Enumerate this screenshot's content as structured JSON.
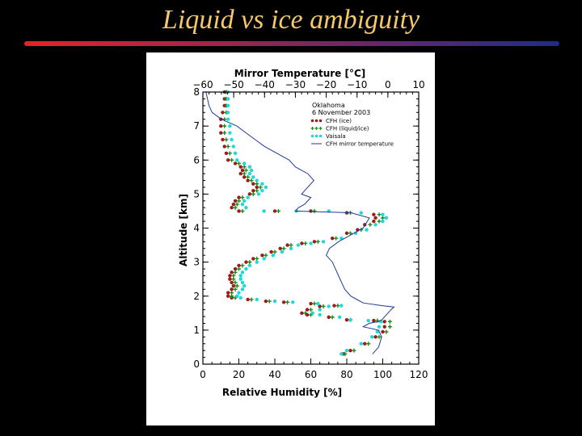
{
  "slide": {
    "title": "Liquid vs ice ambiguity",
    "title_color": "#f5c86a",
    "rule_colors": [
      "#e8212a",
      "#1f2c8a"
    ]
  },
  "chart_data": {
    "type": "scatter",
    "title": "",
    "xlabel": "Relative Humidity [%]",
    "ylabel": "Altitude [km]",
    "x2label": "Mirror Temperature [°C]",
    "xlim": [
      0,
      120
    ],
    "ylim": [
      0,
      8
    ],
    "x2lim": [
      -60,
      10
    ],
    "x_ticks": [
      "0",
      "20",
      "40",
      "60",
      "80",
      "100",
      "120"
    ],
    "y_ticks": [
      "0",
      "1",
      "2",
      "3",
      "4",
      "5",
      "6",
      "7",
      "8"
    ],
    "x2_ticks": [
      "−60",
      "−50",
      "−40",
      "−30",
      "−20",
      "−10",
      "0",
      "10"
    ],
    "annotation": [
      "Oklahoma",
      "6 November 2003"
    ],
    "legend_position": "top-right",
    "grid": false,
    "series": [
      {
        "name": "CFH (ice)",
        "marker": "dots",
        "color": "#a01a1a",
        "points": [
          [
            78,
            0.3
          ],
          [
            82,
            0.4
          ],
          [
            90,
            0.6
          ],
          [
            96,
            0.8
          ],
          [
            100,
            0.95
          ],
          [
            101,
            1.1
          ],
          [
            101,
            1.25
          ],
          [
            95,
            1.28
          ],
          [
            80,
            1.3
          ],
          [
            70,
            1.38
          ],
          [
            58,
            1.45
          ],
          [
            55,
            1.5
          ],
          [
            58,
            1.6
          ],
          [
            65,
            1.7
          ],
          [
            73,
            1.72
          ],
          [
            60,
            1.78
          ],
          [
            45,
            1.82
          ],
          [
            35,
            1.85
          ],
          [
            25,
            1.9
          ],
          [
            16,
            1.95
          ],
          [
            14,
            2.0
          ],
          [
            14,
            2.1
          ],
          [
            16,
            2.2
          ],
          [
            17,
            2.3
          ],
          [
            16,
            2.4
          ],
          [
            15,
            2.5
          ],
          [
            15,
            2.6
          ],
          [
            16,
            2.7
          ],
          [
            18,
            2.8
          ],
          [
            20,
            2.9
          ],
          [
            24,
            3.0
          ],
          [
            28,
            3.1
          ],
          [
            33,
            3.2
          ],
          [
            38,
            3.3
          ],
          [
            43,
            3.4
          ],
          [
            47,
            3.5
          ],
          [
            55,
            3.55
          ],
          [
            62,
            3.6
          ],
          [
            72,
            3.7
          ],
          [
            80,
            3.85
          ],
          [
            86,
            3.95
          ],
          [
            90,
            4.1
          ],
          [
            95,
            4.2
          ],
          [
            96,
            4.3
          ],
          [
            95,
            4.4
          ],
          [
            80,
            4.45
          ],
          [
            60,
            4.5
          ],
          [
            40,
            4.5
          ],
          [
            20,
            4.5
          ],
          [
            16,
            4.6
          ],
          [
            17,
            4.7
          ],
          [
            18,
            4.8
          ],
          [
            20,
            4.9
          ],
          [
            26,
            5.0
          ],
          [
            28,
            5.1
          ],
          [
            30,
            5.2
          ],
          [
            28,
            5.3
          ],
          [
            25,
            5.4
          ],
          [
            23,
            5.5
          ],
          [
            21,
            5.6
          ],
          [
            22,
            5.7
          ],
          [
            21,
            5.8
          ],
          [
            18,
            5.9
          ],
          [
            14,
            6.0
          ],
          [
            13,
            6.2
          ],
          [
            12,
            6.4
          ],
          [
            11,
            6.6
          ],
          [
            10,
            6.8
          ],
          [
            10,
            7.0
          ],
          [
            10,
            7.2
          ],
          [
            11,
            7.4
          ],
          [
            12,
            7.6
          ],
          [
            12,
            7.8
          ],
          [
            12,
            8.0
          ]
        ]
      },
      {
        "name": "CFH (liquid/ice)",
        "marker": "plus",
        "color": "#1a8a1a",
        "points": [
          [
            79,
            0.3
          ],
          [
            84,
            0.4
          ],
          [
            92,
            0.6
          ],
          [
            98,
            0.8
          ],
          [
            102,
            0.95
          ],
          [
            104,
            1.1
          ],
          [
            104,
            1.25
          ],
          [
            97,
            1.28
          ],
          [
            82,
            1.3
          ],
          [
            72,
            1.38
          ],
          [
            60,
            1.45
          ],
          [
            57,
            1.5
          ],
          [
            60,
            1.6
          ],
          [
            67,
            1.7
          ],
          [
            75,
            1.72
          ],
          [
            62,
            1.78
          ],
          [
            47,
            1.82
          ],
          [
            37,
            1.85
          ],
          [
            27,
            1.9
          ],
          [
            18,
            1.95
          ],
          [
            16,
            2.0
          ],
          [
            16,
            2.1
          ],
          [
            18,
            2.2
          ],
          [
            19,
            2.3
          ],
          [
            18,
            2.4
          ],
          [
            17,
            2.5
          ],
          [
            17,
            2.6
          ],
          [
            18,
            2.7
          ],
          [
            20,
            2.8
          ],
          [
            22,
            2.9
          ],
          [
            26,
            3.0
          ],
          [
            30,
            3.1
          ],
          [
            35,
            3.2
          ],
          [
            40,
            3.3
          ],
          [
            45,
            3.4
          ],
          [
            49,
            3.5
          ],
          [
            57,
            3.55
          ],
          [
            64,
            3.6
          ],
          [
            74,
            3.7
          ],
          [
            82,
            3.85
          ],
          [
            88,
            3.95
          ],
          [
            93,
            4.1
          ],
          [
            98,
            4.2
          ],
          [
            100,
            4.3
          ],
          [
            98,
            4.4
          ],
          [
            82,
            4.45
          ],
          [
            62,
            4.5
          ],
          [
            42,
            4.5
          ],
          [
            22,
            4.5
          ],
          [
            18,
            4.6
          ],
          [
            19,
            4.7
          ],
          [
            20,
            4.8
          ],
          [
            22,
            4.9
          ],
          [
            28,
            5.0
          ],
          [
            30,
            5.1
          ],
          [
            32,
            5.2
          ],
          [
            30,
            5.3
          ],
          [
            27,
            5.4
          ],
          [
            25,
            5.5
          ],
          [
            23,
            5.6
          ],
          [
            24,
            5.7
          ],
          [
            23,
            5.8
          ],
          [
            20,
            5.9
          ],
          [
            16,
            6.0
          ],
          [
            15,
            6.2
          ],
          [
            14,
            6.4
          ],
          [
            13,
            6.6
          ],
          [
            12,
            6.8
          ],
          [
            12,
            7.0
          ],
          [
            12,
            7.2
          ],
          [
            13,
            7.4
          ],
          [
            13,
            7.6
          ],
          [
            13,
            7.8
          ],
          [
            13,
            8.0
          ]
        ]
      },
      {
        "name": "Vaisala",
        "marker": "dots",
        "color": "#1fd8d8",
        "points": [
          [
            77,
            0.3
          ],
          [
            80,
            0.4
          ],
          [
            88,
            0.6
          ],
          [
            94,
            0.8
          ],
          [
            97,
            0.95
          ],
          [
            98,
            1.1
          ],
          [
            99,
            1.25
          ],
          [
            92,
            1.28
          ],
          [
            82,
            1.3
          ],
          [
            76,
            1.38
          ],
          [
            65,
            1.45
          ],
          [
            61,
            1.5
          ],
          [
            65,
            1.6
          ],
          [
            70,
            1.7
          ],
          [
            77,
            1.72
          ],
          [
            64,
            1.78
          ],
          [
            50,
            1.82
          ],
          [
            40,
            1.85
          ],
          [
            30,
            1.9
          ],
          [
            21,
            1.95
          ],
          [
            19,
            2.0
          ],
          [
            20,
            2.1
          ],
          [
            22,
            2.2
          ],
          [
            23,
            2.3
          ],
          [
            22,
            2.4
          ],
          [
            21,
            2.5
          ],
          [
            21,
            2.6
          ],
          [
            22,
            2.7
          ],
          [
            24,
            2.8
          ],
          [
            26,
            2.9
          ],
          [
            30,
            3.0
          ],
          [
            34,
            3.1
          ],
          [
            39,
            3.2
          ],
          [
            44,
            3.3
          ],
          [
            49,
            3.4
          ],
          [
            53,
            3.5
          ],
          [
            60,
            3.55
          ],
          [
            67,
            3.6
          ],
          [
            77,
            3.7
          ],
          [
            85,
            3.85
          ],
          [
            91,
            3.95
          ],
          [
            96,
            4.1
          ],
          [
            100,
            4.2
          ],
          [
            102,
            4.3
          ],
          [
            100,
            4.4
          ],
          [
            88,
            4.45
          ],
          [
            70,
            4.5
          ],
          [
            52,
            4.5
          ],
          [
            34,
            4.5
          ],
          [
            24,
            4.6
          ],
          [
            22,
            4.7
          ],
          [
            23,
            4.8
          ],
          [
            25,
            4.9
          ],
          [
            31,
            5.0
          ],
          [
            33,
            5.1
          ],
          [
            35,
            5.2
          ],
          [
            33,
            5.3
          ],
          [
            30,
            5.4
          ],
          [
            28,
            5.5
          ],
          [
            26,
            5.6
          ],
          [
            27,
            5.7
          ],
          [
            26,
            5.8
          ],
          [
            23,
            5.9
          ],
          [
            19,
            6.0
          ],
          [
            18,
            6.2
          ],
          [
            17,
            6.4
          ],
          [
            16,
            6.6
          ],
          [
            15,
            6.8
          ],
          [
            15,
            7.0
          ],
          [
            14,
            7.2
          ],
          [
            14,
            7.4
          ],
          [
            14,
            7.6
          ],
          [
            14,
            7.8
          ],
          [
            14,
            8.0
          ]
        ]
      },
      {
        "name": "CFH mirror temperature",
        "marker": "line",
        "color": "#1f3a9a",
        "axis": "top",
        "points": [
          [
            -5,
            0.3
          ],
          [
            -3,
            0.5
          ],
          [
            -2,
            0.8
          ],
          [
            -3,
            1.0
          ],
          [
            -8,
            1.1
          ],
          [
            -6,
            1.2
          ],
          [
            -3,
            1.25
          ],
          [
            -2,
            1.3
          ],
          [
            0,
            1.5
          ],
          [
            1,
            1.6
          ],
          [
            2,
            1.68
          ],
          [
            -2,
            1.72
          ],
          [
            -8,
            1.8
          ],
          [
            -10,
            1.9
          ],
          [
            -12,
            2.0
          ],
          [
            -14,
            2.2
          ],
          [
            -15,
            2.4
          ],
          [
            -16,
            2.6
          ],
          [
            -17,
            2.8
          ],
          [
            -18,
            3.0
          ],
          [
            -20,
            3.2
          ],
          [
            -19,
            3.4
          ],
          [
            -16,
            3.6
          ],
          [
            -12,
            3.8
          ],
          [
            -8,
            4.0
          ],
          [
            -6,
            4.3
          ],
          [
            -12,
            4.45
          ],
          [
            -30,
            4.5
          ],
          [
            -29,
            4.6
          ],
          [
            -27,
            4.7
          ],
          [
            -25,
            4.9
          ],
          [
            -28,
            5.0
          ],
          [
            -26,
            5.2
          ],
          [
            -24,
            5.4
          ],
          [
            -26,
            5.6
          ],
          [
            -30,
            5.8
          ],
          [
            -32,
            6.0
          ],
          [
            -36,
            6.2
          ],
          [
            -40,
            6.4
          ],
          [
            -43,
            6.6
          ],
          [
            -46,
            6.8
          ],
          [
            -49,
            7.0
          ],
          [
            -54,
            7.2
          ],
          [
            -57,
            7.4
          ],
          [
            -58,
            7.6
          ],
          [
            -59,
            8.0
          ]
        ]
      }
    ]
  }
}
